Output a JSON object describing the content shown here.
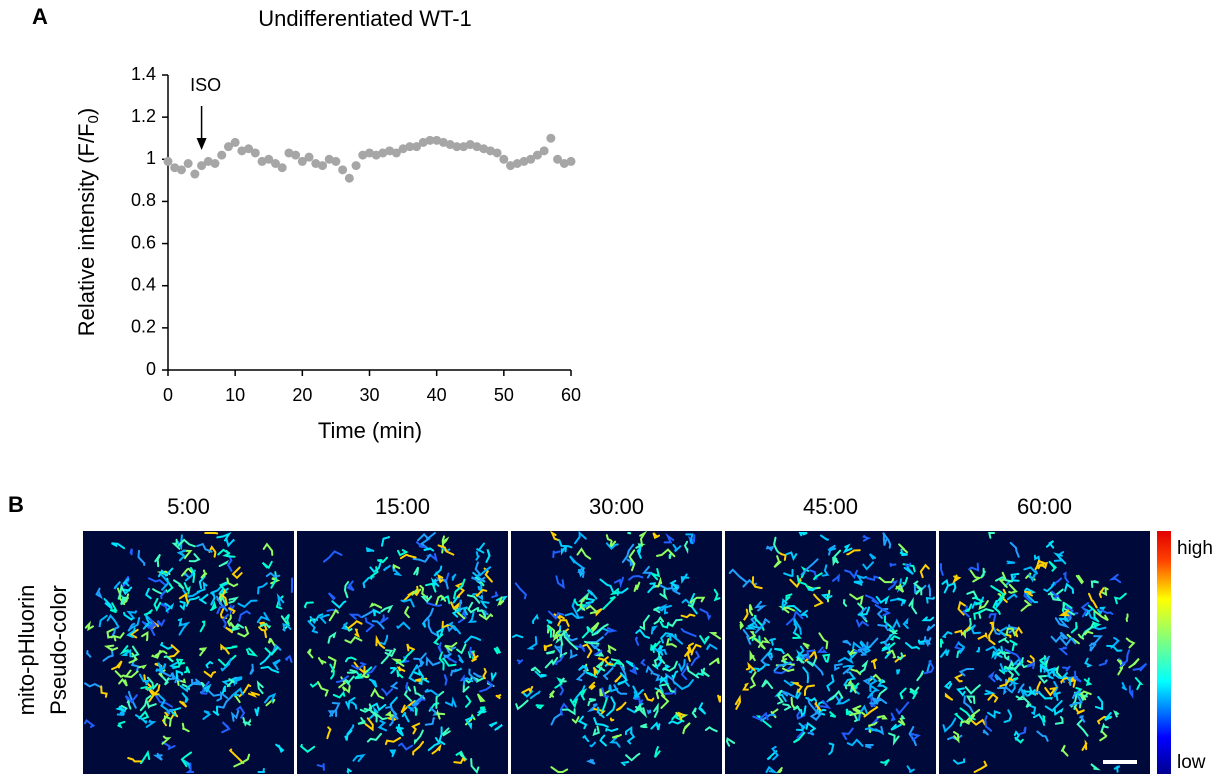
{
  "panel_labels": [
    "A",
    "B"
  ],
  "chart_data": {
    "type": "scatter",
    "title": "Undifferentiated WT-1",
    "x_label": "Time (min)",
    "y_label": {
      "main": "Relative intensity (F/F",
      "sub": "0",
      "end": ")"
    },
    "annotation": {
      "text": "ISO",
      "x": 5
    },
    "color": "#a6a6a6",
    "x": [
      0,
      1,
      2,
      3,
      4,
      5,
      6,
      7,
      8,
      9,
      10,
      11,
      12,
      13,
      14,
      15,
      16,
      17,
      18,
      19,
      20,
      21,
      22,
      23,
      24,
      25,
      26,
      27,
      28,
      29,
      30,
      31,
      32,
      33,
      34,
      35,
      36,
      37,
      38,
      39,
      40,
      41,
      42,
      43,
      44,
      45,
      46,
      47,
      48,
      49,
      50,
      51,
      52,
      53,
      54,
      55,
      56,
      57,
      58,
      59,
      60
    ],
    "values": [
      0.99,
      0.96,
      0.95,
      0.98,
      0.93,
      0.97,
      0.99,
      0.98,
      1.02,
      1.06,
      1.08,
      1.04,
      1.05,
      1.03,
      0.99,
      1.0,
      0.98,
      0.96,
      1.03,
      1.02,
      0.99,
      1.01,
      0.98,
      0.97,
      1.0,
      0.99,
      0.95,
      0.91,
      0.97,
      1.02,
      1.03,
      1.02,
      1.03,
      1.04,
      1.03,
      1.05,
      1.06,
      1.06,
      1.08,
      1.09,
      1.09,
      1.08,
      1.07,
      1.06,
      1.06,
      1.07,
      1.06,
      1.05,
      1.04,
      1.03,
      1.0,
      0.97,
      0.98,
      0.99,
      1.0,
      1.02,
      1.04,
      1.1,
      1.0,
      0.98,
      0.99
    ],
    "xlim": [
      0,
      60
    ],
    "xticks": [
      0,
      10,
      20,
      30,
      40,
      50,
      60
    ],
    "ylim": [
      0,
      1.4
    ],
    "yticks": [
      0,
      0.2,
      0.4,
      0.6,
      0.8,
      1,
      1.2,
      1.4
    ]
  },
  "panel_b": {
    "frame_titles": [
      "5:00",
      "15:00",
      "30:00",
      "45:00",
      "60:00"
    ],
    "row_label": [
      "mito-pHluorin",
      "Pseudo-color"
    ],
    "colorbar": {
      "high": "high",
      "low": "low"
    }
  }
}
